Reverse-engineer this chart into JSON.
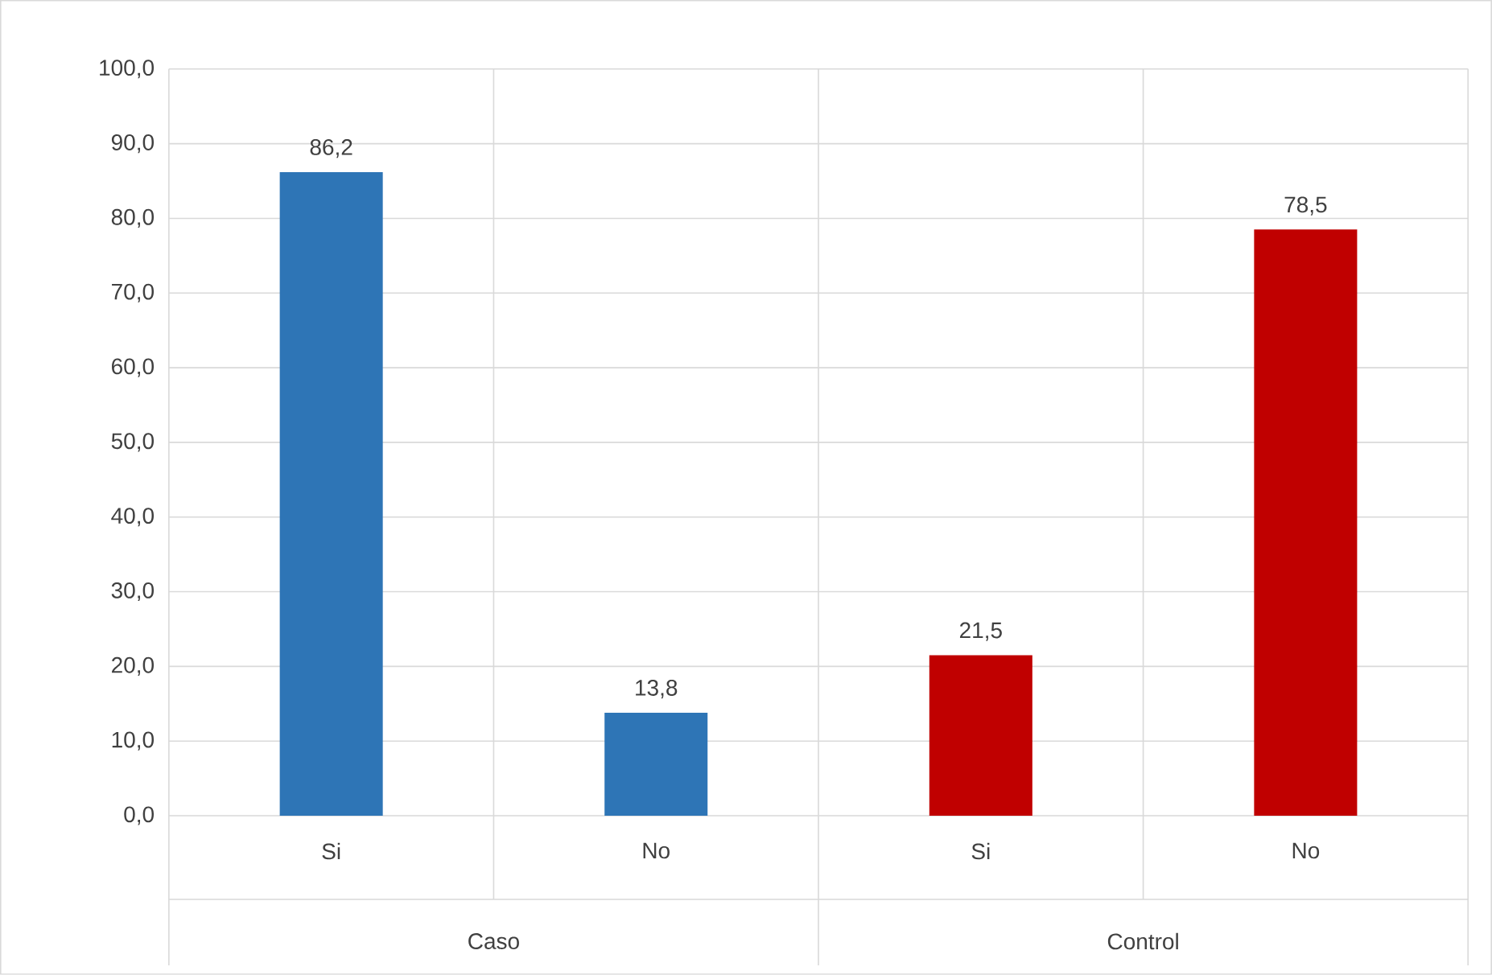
{
  "chart_data": {
    "type": "bar",
    "categories": [
      "Si",
      "No",
      "Si",
      "No"
    ],
    "values": [
      86.2,
      13.8,
      21.5,
      78.5
    ],
    "colors": [
      "#2e75b6",
      "#2e75b6",
      "#c00000",
      "#c00000"
    ],
    "value_labels": [
      "86,2",
      "13,8",
      "21,5",
      "78,5"
    ],
    "annotations": [
      "Caso",
      "Control"
    ],
    "ylim": [
      0,
      100
    ],
    "yticks": [
      {
        "value": 0,
        "label": "0,0"
      },
      {
        "value": 10,
        "label": "10,0"
      },
      {
        "value": 20,
        "label": "20,0"
      },
      {
        "value": 30,
        "label": "30,0"
      },
      {
        "value": 40,
        "label": "40,0"
      },
      {
        "value": 50,
        "label": "50,0"
      },
      {
        "value": 60,
        "label": "60,0"
      },
      {
        "value": 70,
        "label": "70,0"
      },
      {
        "value": 80,
        "label": "80,0"
      },
      {
        "value": 90,
        "label": "90,0"
      },
      {
        "value": 100,
        "label": "100,0"
      }
    ],
    "grid": "y"
  }
}
